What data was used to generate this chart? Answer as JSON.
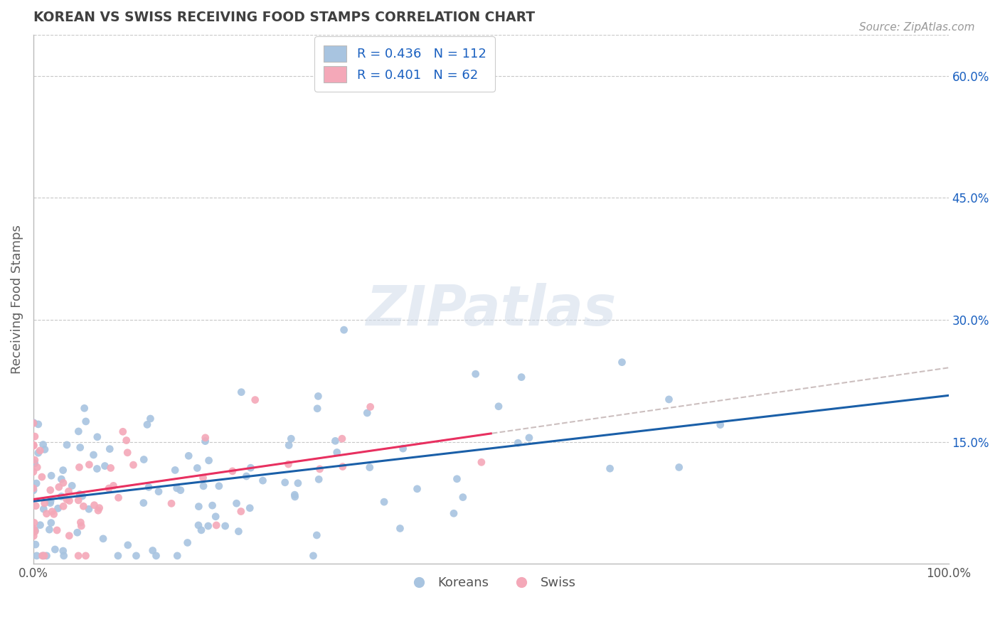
{
  "title": "KOREAN VS SWISS RECEIVING FOOD STAMPS CORRELATION CHART",
  "source": "Source: ZipAtlas.com",
  "ylabel": "Receiving Food Stamps",
  "ytick_labels": [
    "15.0%",
    "30.0%",
    "45.0%",
    "60.0%"
  ],
  "ytick_values": [
    0.15,
    0.3,
    0.45,
    0.6
  ],
  "korean_R": 0.436,
  "korean_N": 112,
  "swiss_R": 0.401,
  "swiss_N": 62,
  "korean_color": "#a8c4e0",
  "swiss_color": "#f4a8b8",
  "korean_line_color": "#1a5fa8",
  "swiss_line_color": "#e83060",
  "watermark_text": "ZIPatlas",
  "background_color": "#ffffff",
  "grid_color": "#c8c8c8",
  "title_color": "#404040",
  "source_color": "#999999",
  "axis_label_color": "#606060",
  "legend_text_color": "#1a60c0",
  "right_ytick_color": "#1a60c0"
}
